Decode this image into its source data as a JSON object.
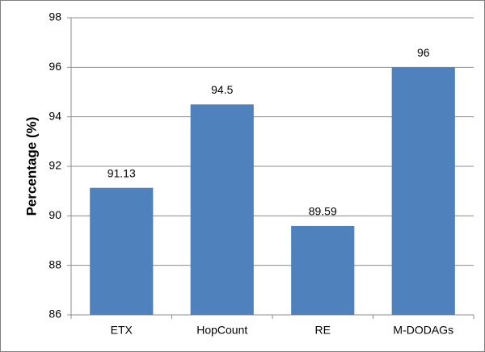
{
  "chart_data": {
    "type": "bar",
    "y_label": "Percentage (%)",
    "categories": [
      "ETX",
      "HopCount",
      "RE",
      "M-DODAGs"
    ],
    "values": [
      91.13,
      94.5,
      89.59,
      96
    ],
    "color": "#4f81bd",
    "ylim": [
      86,
      98
    ],
    "yticks": [
      86,
      88,
      90,
      92,
      94,
      96,
      98
    ],
    "grid": true
  }
}
